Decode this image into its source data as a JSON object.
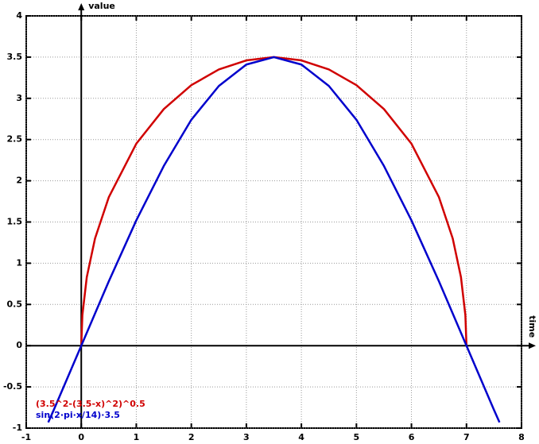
{
  "chart_data": {
    "type": "line",
    "x_label": "time",
    "y_label": "value",
    "xlim": [
      -1,
      8
    ],
    "ylim": [
      -1,
      4
    ],
    "xticks": [
      -1,
      0,
      1,
      2,
      3,
      4,
      5,
      6,
      7,
      8
    ],
    "yticks": [
      -1,
      -0.5,
      0,
      0.5,
      1,
      1.5,
      2,
      2.5,
      3,
      3.5,
      4
    ],
    "grid": true,
    "series": [
      {
        "name": "(3.5^2-(3.5-x)^2)^0.5",
        "color": "#d00000",
        "x": [
          0,
          0.02,
          0.1,
          0.25,
          0.5,
          1,
          1.5,
          2,
          2.5,
          3,
          3.5,
          4,
          4.5,
          5,
          5.5,
          6,
          6.5,
          6.75,
          6.9,
          6.98,
          7
        ],
        "values": [
          0,
          0.37,
          0.83,
          1.3,
          1.8,
          2.45,
          2.87,
          3.16,
          3.35,
          3.46,
          3.5,
          3.46,
          3.35,
          3.16,
          2.87,
          2.45,
          1.8,
          1.3,
          0.83,
          0.37,
          0
        ]
      },
      {
        "name": "sin(2·pi·x/14)·3.5",
        "color": "#0000cc",
        "x": [
          -0.6,
          -0.5,
          0,
          0.5,
          1,
          1.5,
          2,
          2.5,
          3,
          3.5,
          4,
          4.5,
          5,
          5.5,
          6,
          6.5,
          7,
          7.5,
          7.6
        ],
        "values": [
          -0.93,
          -0.78,
          0,
          0.78,
          1.52,
          2.18,
          2.74,
          3.15,
          3.41,
          3.5,
          3.41,
          3.15,
          2.74,
          2.18,
          1.52,
          0.78,
          0,
          -0.78,
          -0.93
        ]
      }
    ]
  }
}
